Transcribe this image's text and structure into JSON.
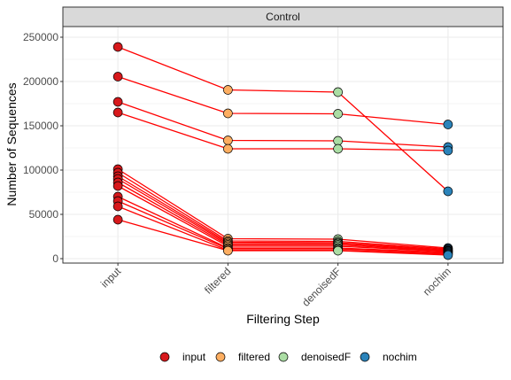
{
  "chart_data": {
    "type": "line",
    "panel": "Control",
    "xlabel": "Filtering Step",
    "ylabel": "Number of Sequences",
    "categories": [
      "input",
      "filtered",
      "denoisedF",
      "nochim"
    ],
    "ylim": [
      -5000,
      262000
    ],
    "yticks": [
      0,
      50000,
      100000,
      150000,
      200000,
      250000
    ],
    "ytick_labels": [
      "0",
      "50000",
      "100000",
      "150000",
      "200000",
      "250000"
    ],
    "grid": true,
    "legend_position": "bottom",
    "line_color": "#ff0000",
    "point_colors": {
      "input": "#d7191c",
      "filtered": "#fdae61",
      "denoisedF": "#abdda4",
      "nochim": "#2b83ba"
    },
    "legend": [
      {
        "key": "input",
        "label": "input"
      },
      {
        "key": "filtered",
        "label": "filtered"
      },
      {
        "key": "denoisedF",
        "label": "denoisedF"
      },
      {
        "key": "nochim",
        "label": "nochim"
      }
    ],
    "samples": [
      [
        239000,
        190500,
        188000,
        76000
      ],
      [
        205500,
        164000,
        163500,
        151500
      ],
      [
        177000,
        133500,
        133000,
        126000
      ],
      [
        165000,
        124000,
        124000,
        122000
      ],
      [
        101000,
        22500,
        22000,
        12000
      ],
      [
        97000,
        20000,
        19500,
        11000
      ],
      [
        93000,
        18500,
        18000,
        10000
      ],
      [
        90000,
        17000,
        17000,
        9000
      ],
      [
        86000,
        15500,
        15500,
        8500
      ],
      [
        82000,
        14000,
        14000,
        8000
      ],
      [
        70000,
        12000,
        12000,
        7000
      ],
      [
        65000,
        11000,
        11000,
        6000
      ],
      [
        59000,
        9500,
        9500,
        5000
      ],
      [
        44000,
        9000,
        9000,
        4000
      ]
    ]
  }
}
